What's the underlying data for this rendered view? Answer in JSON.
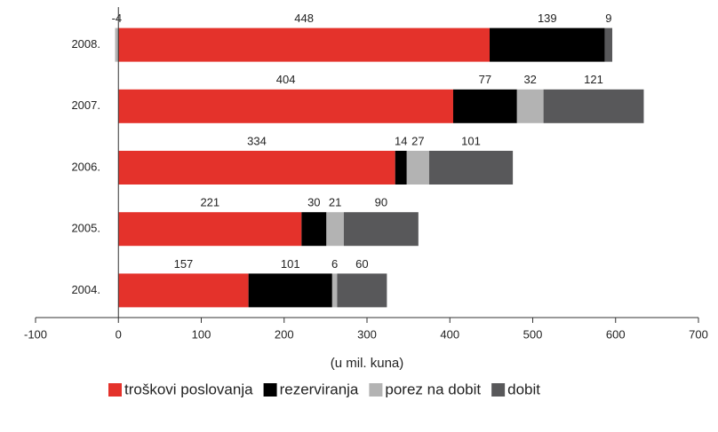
{
  "chart_data": {
    "type": "stacked_barh",
    "categories": [
      "2008.",
      "2007.",
      "2006.",
      "2005.",
      "2004."
    ],
    "series": [
      {
        "name": "troškovi poslovanja",
        "color": "#e4322b",
        "values": [
          448,
          404,
          334,
          221,
          157
        ]
      },
      {
        "name": "rezerviranja",
        "color": "#000000",
        "values": [
          139,
          77,
          14,
          30,
          101
        ]
      },
      {
        "name": "porez na dobit",
        "color": "#b3b3b3",
        "values": [
          -4,
          32,
          27,
          21,
          6
        ]
      },
      {
        "name": "dobit",
        "color": "#58585a",
        "values": [
          9,
          121,
          101,
          90,
          60
        ]
      }
    ],
    "xlim": [
      -100,
      700
    ],
    "xticks": [
      -100,
      0,
      100,
      200,
      300,
      400,
      500,
      600,
      700
    ],
    "xlabel": "(u mil. kuna)",
    "legend": "bottom"
  }
}
